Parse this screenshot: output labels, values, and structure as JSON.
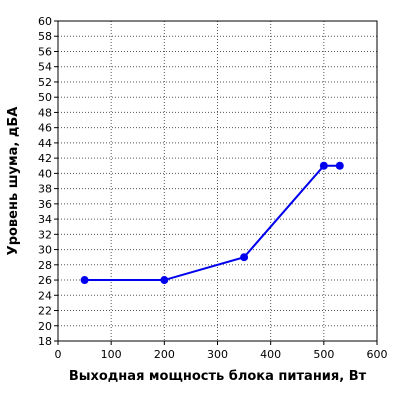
{
  "chart_data": {
    "type": "line",
    "title": "",
    "xlabel": "Выходная мощность блока питания, Вт",
    "ylabel": "Уровень шума, дБА",
    "xlim": [
      0,
      600
    ],
    "ylim": [
      18,
      60
    ],
    "xticks": [
      0,
      100,
      200,
      300,
      400,
      500,
      600
    ],
    "yticks": [
      18,
      20,
      22,
      24,
      26,
      28,
      30,
      32,
      34,
      36,
      38,
      40,
      42,
      44,
      46,
      48,
      50,
      52,
      54,
      56,
      58,
      60
    ],
    "grid": true,
    "legend": false,
    "series": [
      {
        "color": "#0000ee",
        "x": [
          50,
          200,
          350,
          500,
          530
        ],
        "y": [
          26,
          26,
          29,
          41,
          41
        ]
      }
    ]
  }
}
